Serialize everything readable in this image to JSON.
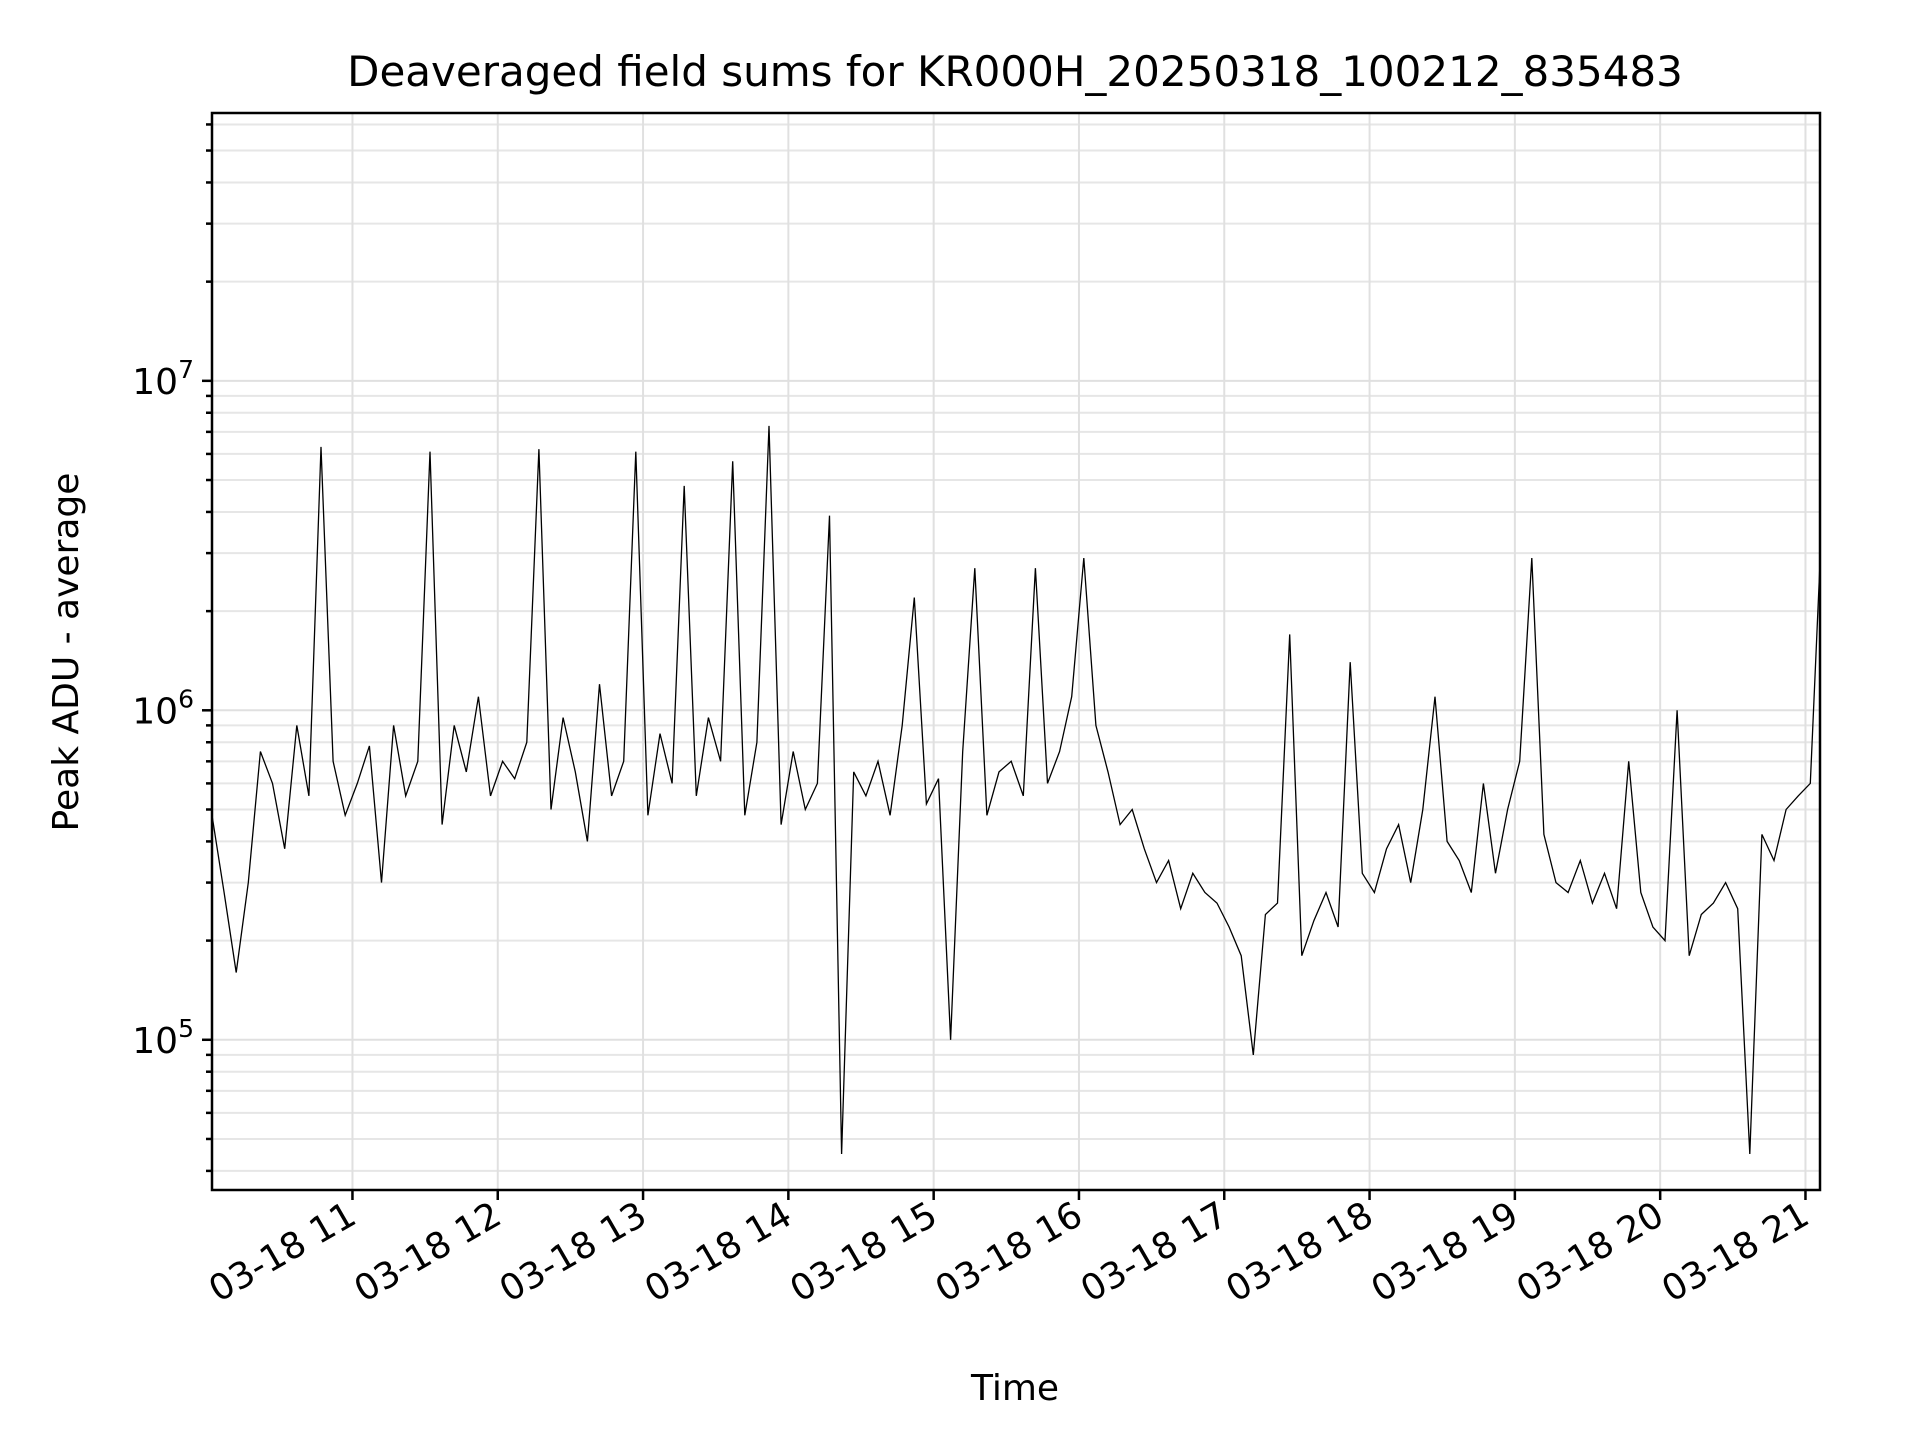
{
  "chart_data": {
    "type": "line",
    "title": "Deaveraged field sums for KR000H_20250318_100212_835483",
    "xlabel": "Time",
    "ylabel": "Peak ADU - average",
    "yscale": "log",
    "ylim": [
      35000,
      65000000
    ],
    "xlim": [
      "03-18 10:02",
      "03-18 21:06"
    ],
    "grid": true,
    "legend": "none",
    "line_color": "#000000",
    "x_ticks": [
      "03-18 11",
      "03-18 12",
      "03-18 13",
      "03-18 14",
      "03-18 15",
      "03-18 16",
      "03-18 17",
      "03-18 18",
      "03-18 19",
      "03-18 20",
      "03-18 21"
    ],
    "y_ticks": [
      {
        "value": 100000,
        "base": "10",
        "exp": "5"
      },
      {
        "value": 1000000,
        "base": "10",
        "exp": "6"
      },
      {
        "value": 10000000,
        "base": "10",
        "exp": "7"
      }
    ],
    "series": [
      {
        "x": [
          "03-18 10:02",
          "03-18 10:07",
          "03-18 10:12",
          "03-18 10:17",
          "03-18 10:22",
          "03-18 10:27",
          "03-18 10:32",
          "03-18 10:37",
          "03-18 10:42",
          "03-18 10:47",
          "03-18 10:52",
          "03-18 10:57",
          "03-18 11:02",
          "03-18 11:07",
          "03-18 11:12",
          "03-18 11:17",
          "03-18 11:22",
          "03-18 11:27",
          "03-18 11:32",
          "03-18 11:37",
          "03-18 11:42",
          "03-18 11:47",
          "03-18 11:52",
          "03-18 11:57",
          "03-18 12:02",
          "03-18 12:07",
          "03-18 12:12",
          "03-18 12:17",
          "03-18 12:22",
          "03-18 12:27",
          "03-18 12:32",
          "03-18 12:37",
          "03-18 12:42",
          "03-18 12:47",
          "03-18 12:52",
          "03-18 12:57",
          "03-18 13:02",
          "03-18 13:07",
          "03-18 13:12",
          "03-18 13:17",
          "03-18 13:22",
          "03-18 13:27",
          "03-18 13:32",
          "03-18 13:37",
          "03-18 13:42",
          "03-18 13:47",
          "03-18 13:52",
          "03-18 13:57",
          "03-18 14:02",
          "03-18 14:07",
          "03-18 14:12",
          "03-18 14:17",
          "03-18 14:22",
          "03-18 14:27",
          "03-18 14:32",
          "03-18 14:37",
          "03-18 14:42",
          "03-18 14:47",
          "03-18 14:52",
          "03-18 14:57",
          "03-18 15:02",
          "03-18 15:07",
          "03-18 15:12",
          "03-18 15:17",
          "03-18 15:22",
          "03-18 15:27",
          "03-18 15:32",
          "03-18 15:37",
          "03-18 15:42",
          "03-18 15:47",
          "03-18 15:52",
          "03-18 15:57",
          "03-18 16:02",
          "03-18 16:07",
          "03-18 16:12",
          "03-18 16:17",
          "03-18 16:22",
          "03-18 16:27",
          "03-18 16:32",
          "03-18 16:37",
          "03-18 16:42",
          "03-18 16:47",
          "03-18 16:52",
          "03-18 16:57",
          "03-18 17:02",
          "03-18 17:07",
          "03-18 17:12",
          "03-18 17:17",
          "03-18 17:22",
          "03-18 17:27",
          "03-18 17:32",
          "03-18 17:37",
          "03-18 17:42",
          "03-18 17:47",
          "03-18 17:52",
          "03-18 17:57",
          "03-18 18:02",
          "03-18 18:07",
          "03-18 18:12",
          "03-18 18:17",
          "03-18 18:22",
          "03-18 18:27",
          "03-18 18:32",
          "03-18 18:37",
          "03-18 18:42",
          "03-18 18:47",
          "03-18 18:52",
          "03-18 18:57",
          "03-18 19:02",
          "03-18 19:07",
          "03-18 19:12",
          "03-18 19:17",
          "03-18 19:22",
          "03-18 19:27",
          "03-18 19:32",
          "03-18 19:37",
          "03-18 19:42",
          "03-18 19:47",
          "03-18 19:52",
          "03-18 19:57",
          "03-18 20:02",
          "03-18 20:07",
          "03-18 20:12",
          "03-18 20:17",
          "03-18 20:22",
          "03-18 20:27",
          "03-18 20:32",
          "03-18 20:37",
          "03-18 20:42",
          "03-18 20:47",
          "03-18 20:52",
          "03-18 20:57",
          "03-18 21:02",
          "03-18 21:06"
        ],
        "values": [
          480000,
          280000,
          160000,
          300000,
          750000,
          600000,
          380000,
          900000,
          550000,
          6300000,
          700000,
          480000,
          600000,
          780000,
          300000,
          900000,
          550000,
          700000,
          6100000,
          450000,
          900000,
          650000,
          1100000,
          550000,
          700000,
          620000,
          800000,
          6200000,
          500000,
          950000,
          650000,
          400000,
          1200000,
          550000,
          700000,
          6100000,
          480000,
          850000,
          600000,
          4800000,
          550000,
          950000,
          700000,
          5700000,
          480000,
          800000,
          7300000,
          450000,
          750000,
          500000,
          600000,
          3900000,
          45000,
          650000,
          550000,
          700000,
          480000,
          900000,
          2200000,
          520000,
          620000,
          100000,
          750000,
          2700000,
          480000,
          650000,
          700000,
          550000,
          2700000,
          600000,
          750000,
          1100000,
          2900000,
          900000,
          650000,
          450000,
          500000,
          380000,
          300000,
          350000,
          250000,
          320000,
          280000,
          260000,
          220000,
          180000,
          90000,
          240000,
          260000,
          1700000,
          180000,
          230000,
          280000,
          220000,
          1400000,
          320000,
          280000,
          380000,
          450000,
          300000,
          500000,
          1100000,
          400000,
          350000,
          280000,
          600000,
          320000,
          500000,
          700000,
          2900000,
          420000,
          300000,
          280000,
          350000,
          260000,
          320000,
          250000,
          700000,
          280000,
          220000,
          200000,
          1000000,
          180000,
          240000,
          260000,
          300000,
          250000,
          45000,
          420000,
          350000,
          500000,
          550000,
          600000,
          2800000
        ]
      }
    ]
  }
}
